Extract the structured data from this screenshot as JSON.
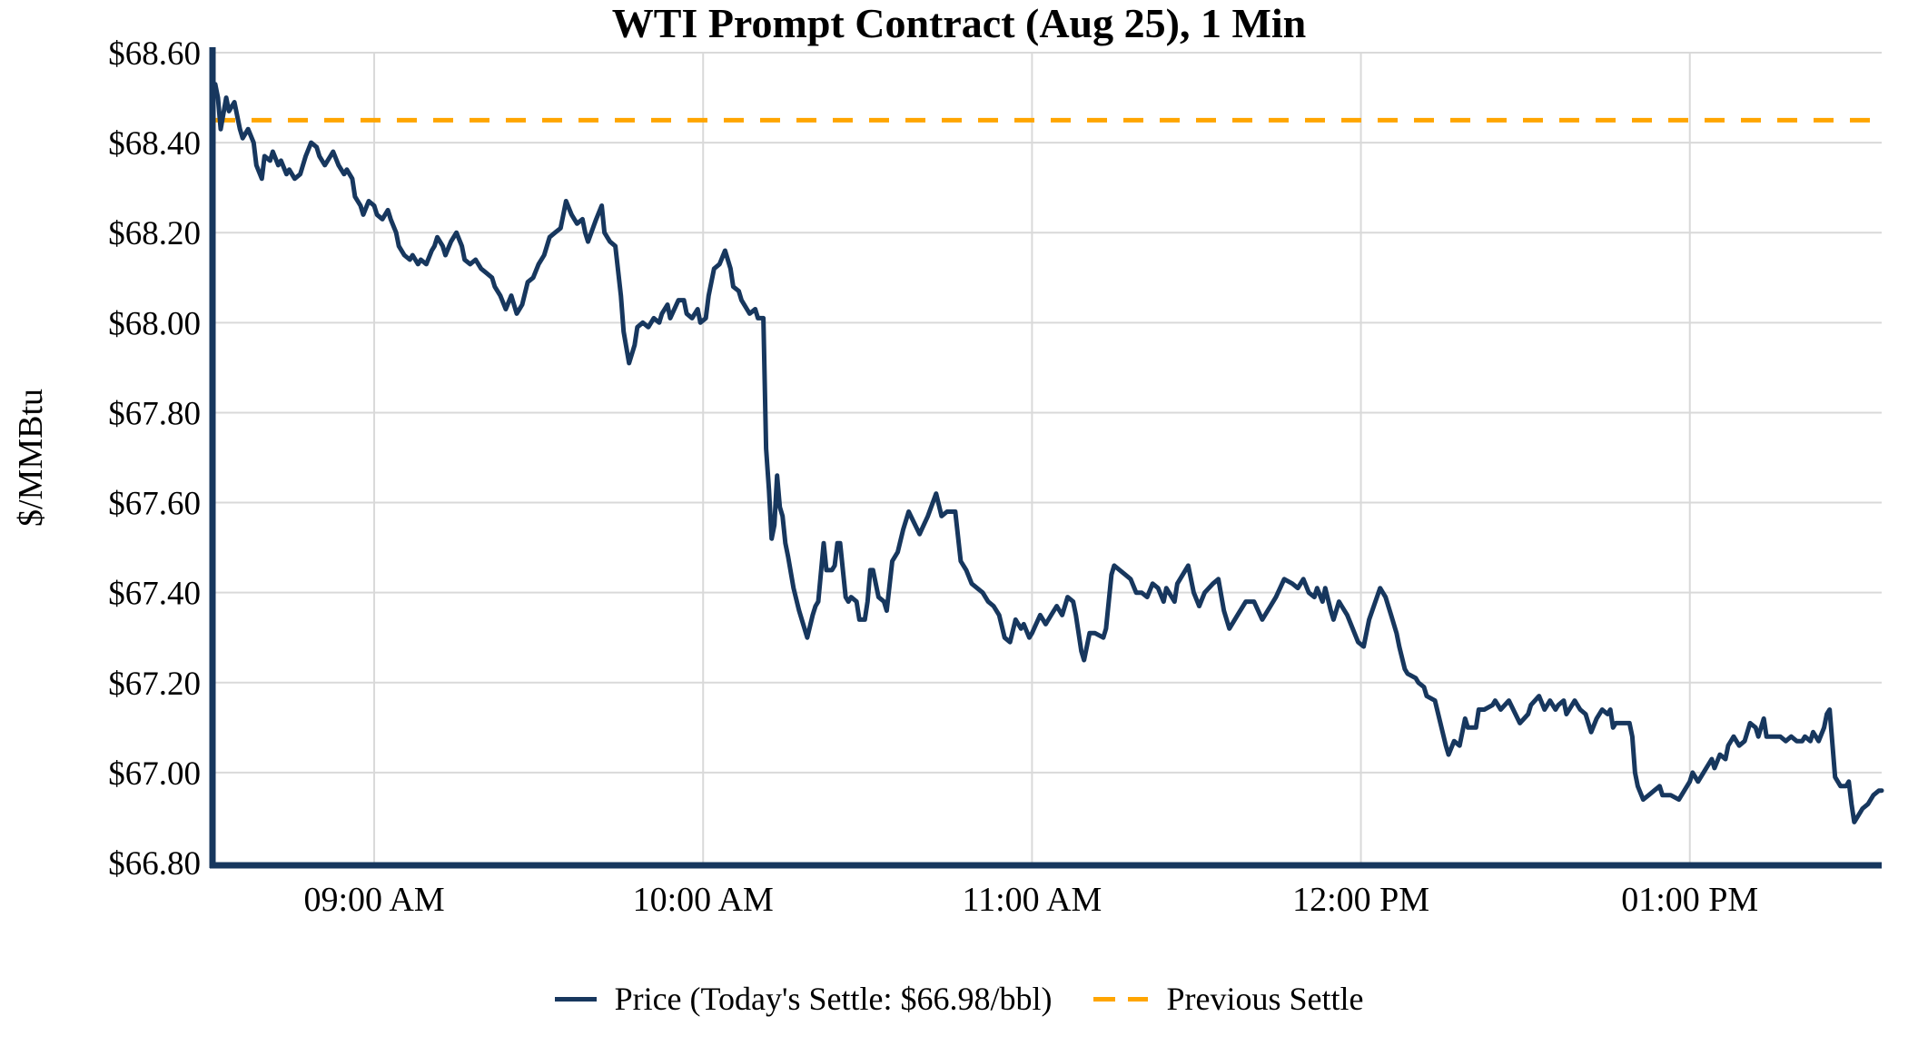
{
  "chart_data": {
    "type": "line",
    "title": "WTI Prompt Contract (Aug 25), 1 Min",
    "ylabel": "$/MMBtu",
    "ylim": [
      66.8,
      68.6
    ],
    "grid": true,
    "legend_position": "bottom",
    "grid_color": "#D9D9D9",
    "axis_color": "#17375E",
    "y_ticks": [
      {
        "value": 68.6,
        "label": "$68.60"
      },
      {
        "value": 68.4,
        "label": "$68.40"
      },
      {
        "value": 68.2,
        "label": "$68.20"
      },
      {
        "value": 68.0,
        "label": "$68.00"
      },
      {
        "value": 67.8,
        "label": "$67.80"
      },
      {
        "value": 67.6,
        "label": "$67.60"
      },
      {
        "value": 67.4,
        "label": "$67.40"
      },
      {
        "value": 67.2,
        "label": "$67.20"
      },
      {
        "value": 67.0,
        "label": "$67.00"
      },
      {
        "value": 66.8,
        "label": "$66.80"
      }
    ],
    "x_minutes_span": 304,
    "x_ticks": [
      {
        "minute": 29,
        "label": "09:00 AM"
      },
      {
        "minute": 89,
        "label": "10:00 AM"
      },
      {
        "minute": 149,
        "label": "11:00 AM"
      },
      {
        "minute": 209,
        "label": "12:00 PM"
      },
      {
        "minute": 269,
        "label": "01:00 PM"
      }
    ],
    "previous_settle": {
      "label": "Previous Settle",
      "value": 68.45,
      "color": "#FFA500",
      "style": "dashed"
    },
    "price_series": {
      "label": "Price (Today's Settle: $66.98/bbl)",
      "color": "#17375E",
      "today_settle_value": "$66.98/bbl",
      "points": [
        [
          0,
          68.53
        ],
        [
          0.5,
          68.5
        ],
        [
          1,
          68.43
        ],
        [
          2,
          68.5
        ],
        [
          2.5,
          68.47
        ],
        [
          3.5,
          68.49
        ],
        [
          4.5,
          68.43
        ],
        [
          5,
          68.41
        ],
        [
          6,
          68.43
        ],
        [
          7,
          68.4
        ],
        [
          7.5,
          68.35
        ],
        [
          8.5,
          68.32
        ],
        [
          9,
          68.37
        ],
        [
          10,
          68.36
        ],
        [
          10.5,
          68.38
        ],
        [
          11.5,
          68.35
        ],
        [
          12,
          68.36
        ],
        [
          13,
          68.33
        ],
        [
          13.5,
          68.34
        ],
        [
          14.5,
          68.32
        ],
        [
          15.5,
          68.33
        ],
        [
          16.5,
          68.37
        ],
        [
          17.5,
          68.4
        ],
        [
          18.5,
          68.39
        ],
        [
          19,
          68.37
        ],
        [
          20,
          68.35
        ],
        [
          21,
          68.37
        ],
        [
          21.5,
          68.38
        ],
        [
          22.5,
          68.35
        ],
        [
          23.5,
          68.33
        ],
        [
          24,
          68.34
        ],
        [
          25,
          68.32
        ],
        [
          25.5,
          68.28
        ],
        [
          26.5,
          68.26
        ],
        [
          27,
          68.24
        ],
        [
          28,
          68.27
        ],
        [
          29,
          68.26
        ],
        [
          29.5,
          68.24
        ],
        [
          30.5,
          68.23
        ],
        [
          31.5,
          68.25
        ],
        [
          32,
          68.23
        ],
        [
          33,
          68.2
        ],
        [
          33.5,
          68.17
        ],
        [
          34.5,
          68.15
        ],
        [
          35.5,
          68.14
        ],
        [
          36,
          68.15
        ],
        [
          37,
          68.13
        ],
        [
          37.5,
          68.14
        ],
        [
          38.5,
          68.13
        ],
        [
          39.5,
          68.16
        ],
        [
          40,
          68.17
        ],
        [
          40.5,
          68.19
        ],
        [
          41.5,
          68.17
        ],
        [
          42,
          68.15
        ],
        [
          43,
          68.18
        ],
        [
          44,
          68.2
        ],
        [
          45,
          68.17
        ],
        [
          45.5,
          68.14
        ],
        [
          46.5,
          68.13
        ],
        [
          47.5,
          68.14
        ],
        [
          48.5,
          68.12
        ],
        [
          49.5,
          68.11
        ],
        [
          50.5,
          68.1
        ],
        [
          51,
          68.08
        ],
        [
          52,
          68.06
        ],
        [
          53,
          68.03
        ],
        [
          54,
          68.06
        ],
        [
          55,
          68.02
        ],
        [
          56,
          68.04
        ],
        [
          57,
          68.09
        ],
        [
          58,
          68.1
        ],
        [
          59,
          68.13
        ],
        [
          60,
          68.15
        ],
        [
          61,
          68.19
        ],
        [
          62,
          68.2
        ],
        [
          63,
          68.21
        ],
        [
          64,
          68.27
        ],
        [
          65,
          68.24
        ],
        [
          66,
          68.22
        ],
        [
          67,
          68.23
        ],
        [
          67.5,
          68.2
        ],
        [
          68,
          68.18
        ],
        [
          69.5,
          68.23
        ],
        [
          70.5,
          68.26
        ],
        [
          71,
          68.2
        ],
        [
          72,
          68.18
        ],
        [
          73,
          68.17
        ],
        [
          74,
          68.06
        ],
        [
          74.5,
          67.98
        ],
        [
          75.5,
          67.91
        ],
        [
          76.5,
          67.95
        ],
        [
          77,
          67.99
        ],
        [
          78,
          68.0
        ],
        [
          79,
          67.99
        ],
        [
          80,
          68.01
        ],
        [
          81,
          68.0
        ],
        [
          81.5,
          68.02
        ],
        [
          82.5,
          68.04
        ],
        [
          83,
          68.01
        ],
        [
          84.5,
          68.05
        ],
        [
          85.5,
          68.05
        ],
        [
          86,
          68.02
        ],
        [
          87,
          68.01
        ],
        [
          88,
          68.03
        ],
        [
          88.5,
          68.0
        ],
        [
          89.5,
          68.01
        ],
        [
          90,
          68.06
        ],
        [
          90.5,
          68.09
        ],
        [
          91,
          68.12
        ],
        [
          92,
          68.13
        ],
        [
          93,
          68.16
        ],
        [
          94,
          68.12
        ],
        [
          94.5,
          68.08
        ],
        [
          95.5,
          68.07
        ],
        [
          96,
          68.05
        ],
        [
          97,
          68.03
        ],
        [
          97.5,
          68.02
        ],
        [
          98.5,
          68.03
        ],
        [
          99,
          68.01
        ],
        [
          100,
          68.01
        ],
        [
          100.5,
          67.72
        ],
        [
          101,
          67.63
        ],
        [
          101.5,
          67.52
        ],
        [
          102,
          67.55
        ],
        [
          102.5,
          67.66
        ],
        [
          103,
          67.59
        ],
        [
          103.5,
          67.57
        ],
        [
          104,
          67.51
        ],
        [
          104.5,
          67.48
        ],
        [
          105.5,
          67.41
        ],
        [
          106.5,
          67.36
        ],
        [
          107,
          67.34
        ],
        [
          107.5,
          67.32
        ],
        [
          108,
          67.3
        ],
        [
          109,
          67.35
        ],
        [
          109.5,
          67.37
        ],
        [
          110,
          67.38
        ],
        [
          111,
          67.51
        ],
        [
          111.5,
          67.45
        ],
        [
          112.5,
          67.45
        ],
        [
          113,
          67.46
        ],
        [
          113.5,
          67.51
        ],
        [
          114,
          67.51
        ],
        [
          115,
          67.39
        ],
        [
          115.5,
          67.38
        ],
        [
          116,
          67.39
        ],
        [
          117,
          67.38
        ],
        [
          117.5,
          67.34
        ],
        [
          118.5,
          67.34
        ],
        [
          119,
          67.38
        ],
        [
          119.5,
          67.45
        ],
        [
          120,
          67.45
        ],
        [
          121,
          67.39
        ],
        [
          122,
          67.38
        ],
        [
          122.5,
          67.36
        ],
        [
          123.5,
          67.47
        ],
        [
          124.5,
          67.49
        ],
        [
          125.5,
          67.54
        ],
        [
          126.5,
          67.58
        ],
        [
          128.5,
          67.53
        ],
        [
          130,
          67.57
        ],
        [
          131.5,
          67.62
        ],
        [
          132.5,
          67.57
        ],
        [
          133.5,
          67.58
        ],
        [
          135,
          67.58
        ],
        [
          136,
          67.47
        ],
        [
          137,
          67.45
        ],
        [
          138,
          67.42
        ],
        [
          140,
          67.4
        ],
        [
          141,
          67.38
        ],
        [
          142,
          67.37
        ],
        [
          143,
          67.35
        ],
        [
          144,
          67.3
        ],
        [
          145,
          67.29
        ],
        [
          146,
          67.34
        ],
        [
          147,
          67.32
        ],
        [
          147.5,
          67.33
        ],
        [
          148.5,
          67.3
        ],
        [
          149,
          67.31
        ],
        [
          150.5,
          67.35
        ],
        [
          151.5,
          67.33
        ],
        [
          152.5,
          67.35
        ],
        [
          153.5,
          67.37
        ],
        [
          154.5,
          67.35
        ],
        [
          155.5,
          67.39
        ],
        [
          156.5,
          67.38
        ],
        [
          157,
          67.35
        ],
        [
          158,
          67.27
        ],
        [
          158.5,
          67.25
        ],
        [
          159.5,
          67.31
        ],
        [
          160.5,
          67.31
        ],
        [
          162,
          67.3
        ],
        [
          162.5,
          67.32
        ],
        [
          163.5,
          67.44
        ],
        [
          164,
          67.46
        ],
        [
          165,
          67.45
        ],
        [
          166,
          67.44
        ],
        [
          167,
          67.43
        ],
        [
          168,
          67.4
        ],
        [
          169,
          67.4
        ],
        [
          170,
          67.39
        ],
        [
          171,
          67.42
        ],
        [
          172,
          67.41
        ],
        [
          173,
          67.38
        ],
        [
          173.5,
          67.41
        ],
        [
          175,
          67.38
        ],
        [
          175.5,
          67.42
        ],
        [
          177.5,
          67.46
        ],
        [
          178.5,
          67.4
        ],
        [
          179.5,
          67.37
        ],
        [
          180.5,
          67.4
        ],
        [
          182,
          67.42
        ],
        [
          183,
          67.43
        ],
        [
          184,
          67.36
        ],
        [
          185,
          67.32
        ],
        [
          186.5,
          67.35
        ],
        [
          188,
          67.38
        ],
        [
          189.5,
          67.38
        ],
        [
          191,
          67.34
        ],
        [
          192.5,
          67.37
        ],
        [
          193.5,
          67.39
        ],
        [
          195,
          67.43
        ],
        [
          196.5,
          67.42
        ],
        [
          197.5,
          67.41
        ],
        [
          198.5,
          67.43
        ],
        [
          199.5,
          67.4
        ],
        [
          200.5,
          67.39
        ],
        [
          201,
          67.41
        ],
        [
          202,
          67.38
        ],
        [
          202.5,
          67.41
        ],
        [
          203.5,
          67.36
        ],
        [
          204,
          67.34
        ],
        [
          205,
          67.38
        ],
        [
          205.5,
          67.37
        ],
        [
          206.5,
          67.35
        ],
        [
          207.5,
          67.32
        ],
        [
          208.5,
          67.29
        ],
        [
          209.5,
          67.28
        ],
        [
          210.5,
          67.34
        ],
        [
          212.5,
          67.41
        ],
        [
          213.5,
          67.39
        ],
        [
          214.5,
          67.35
        ],
        [
          215.5,
          67.31
        ],
        [
          216,
          67.28
        ],
        [
          217,
          67.23
        ],
        [
          217.5,
          67.22
        ],
        [
          219,
          67.21
        ],
        [
          219.5,
          67.2
        ],
        [
          220.5,
          67.19
        ],
        [
          221,
          67.17
        ],
        [
          222.5,
          67.16
        ],
        [
          223.5,
          67.11
        ],
        [
          224.5,
          67.06
        ],
        [
          225,
          67.04
        ],
        [
          226,
          67.07
        ],
        [
          227,
          67.06
        ],
        [
          228,
          67.12
        ],
        [
          228.5,
          67.1
        ],
        [
          230,
          67.1
        ],
        [
          230.5,
          67.14
        ],
        [
          231.5,
          67.14
        ],
        [
          233,
          67.15
        ],
        [
          233.5,
          67.16
        ],
        [
          234.5,
          67.14
        ],
        [
          236,
          67.16
        ],
        [
          238,
          67.11
        ],
        [
          239.5,
          67.13
        ],
        [
          240,
          67.15
        ],
        [
          241.5,
          67.17
        ],
        [
          242.5,
          67.14
        ],
        [
          243.5,
          67.16
        ],
        [
          244.5,
          67.14
        ],
        [
          245,
          67.15
        ],
        [
          246,
          67.16
        ],
        [
          246.5,
          67.13
        ],
        [
          248,
          67.16
        ],
        [
          249,
          67.14
        ],
        [
          250,
          67.13
        ],
        [
          251,
          67.09
        ],
        [
          252,
          67.12
        ],
        [
          253,
          67.14
        ],
        [
          254,
          67.13
        ],
        [
          254.5,
          67.14
        ],
        [
          255,
          67.1
        ],
        [
          255.5,
          67.11
        ],
        [
          257,
          67.11
        ],
        [
          258,
          67.11
        ],
        [
          258.5,
          67.08
        ],
        [
          259,
          67.0
        ],
        [
          259.5,
          66.97
        ],
        [
          260.5,
          66.94
        ],
        [
          261.5,
          66.95
        ],
        [
          262.5,
          66.96
        ],
        [
          263.5,
          66.97
        ],
        [
          264,
          66.95
        ],
        [
          265.5,
          66.95
        ],
        [
          267,
          66.94
        ],
        [
          268,
          66.96
        ],
        [
          269,
          66.98
        ],
        [
          269.5,
          67.0
        ],
        [
          270.5,
          66.98
        ],
        [
          271.5,
          67.0
        ],
        [
          273,
          67.03
        ],
        [
          273.5,
          67.01
        ],
        [
          274.5,
          67.04
        ],
        [
          275.5,
          67.03
        ],
        [
          276,
          67.06
        ],
        [
          277,
          67.08
        ],
        [
          278,
          67.06
        ],
        [
          279,
          67.07
        ],
        [
          280,
          67.11
        ],
        [
          281,
          67.1
        ],
        [
          281.5,
          67.08
        ],
        [
          282.5,
          67.12
        ],
        [
          283,
          67.08
        ],
        [
          284.5,
          67.08
        ],
        [
          285.5,
          67.08
        ],
        [
          286.5,
          67.07
        ],
        [
          287.5,
          67.08
        ],
        [
          288.5,
          67.07
        ],
        [
          289.5,
          67.07
        ],
        [
          290,
          67.08
        ],
        [
          291,
          67.07
        ],
        [
          291.5,
          67.09
        ],
        [
          292.5,
          67.07
        ],
        [
          293.5,
          67.1
        ],
        [
          294,
          67.13
        ],
        [
          294.5,
          67.14
        ],
        [
          295.5,
          66.99
        ],
        [
          296,
          66.98
        ],
        [
          296.5,
          66.97
        ],
        [
          297.5,
          66.97
        ],
        [
          298,
          66.98
        ],
        [
          298.5,
          66.93
        ],
        [
          299,
          66.89
        ],
        [
          300,
          66.91
        ],
        [
          300.5,
          66.92
        ],
        [
          301.5,
          66.93
        ],
        [
          302,
          66.94
        ],
        [
          302.5,
          66.95
        ],
        [
          303.5,
          66.96
        ],
        [
          304,
          66.96
        ]
      ]
    }
  }
}
